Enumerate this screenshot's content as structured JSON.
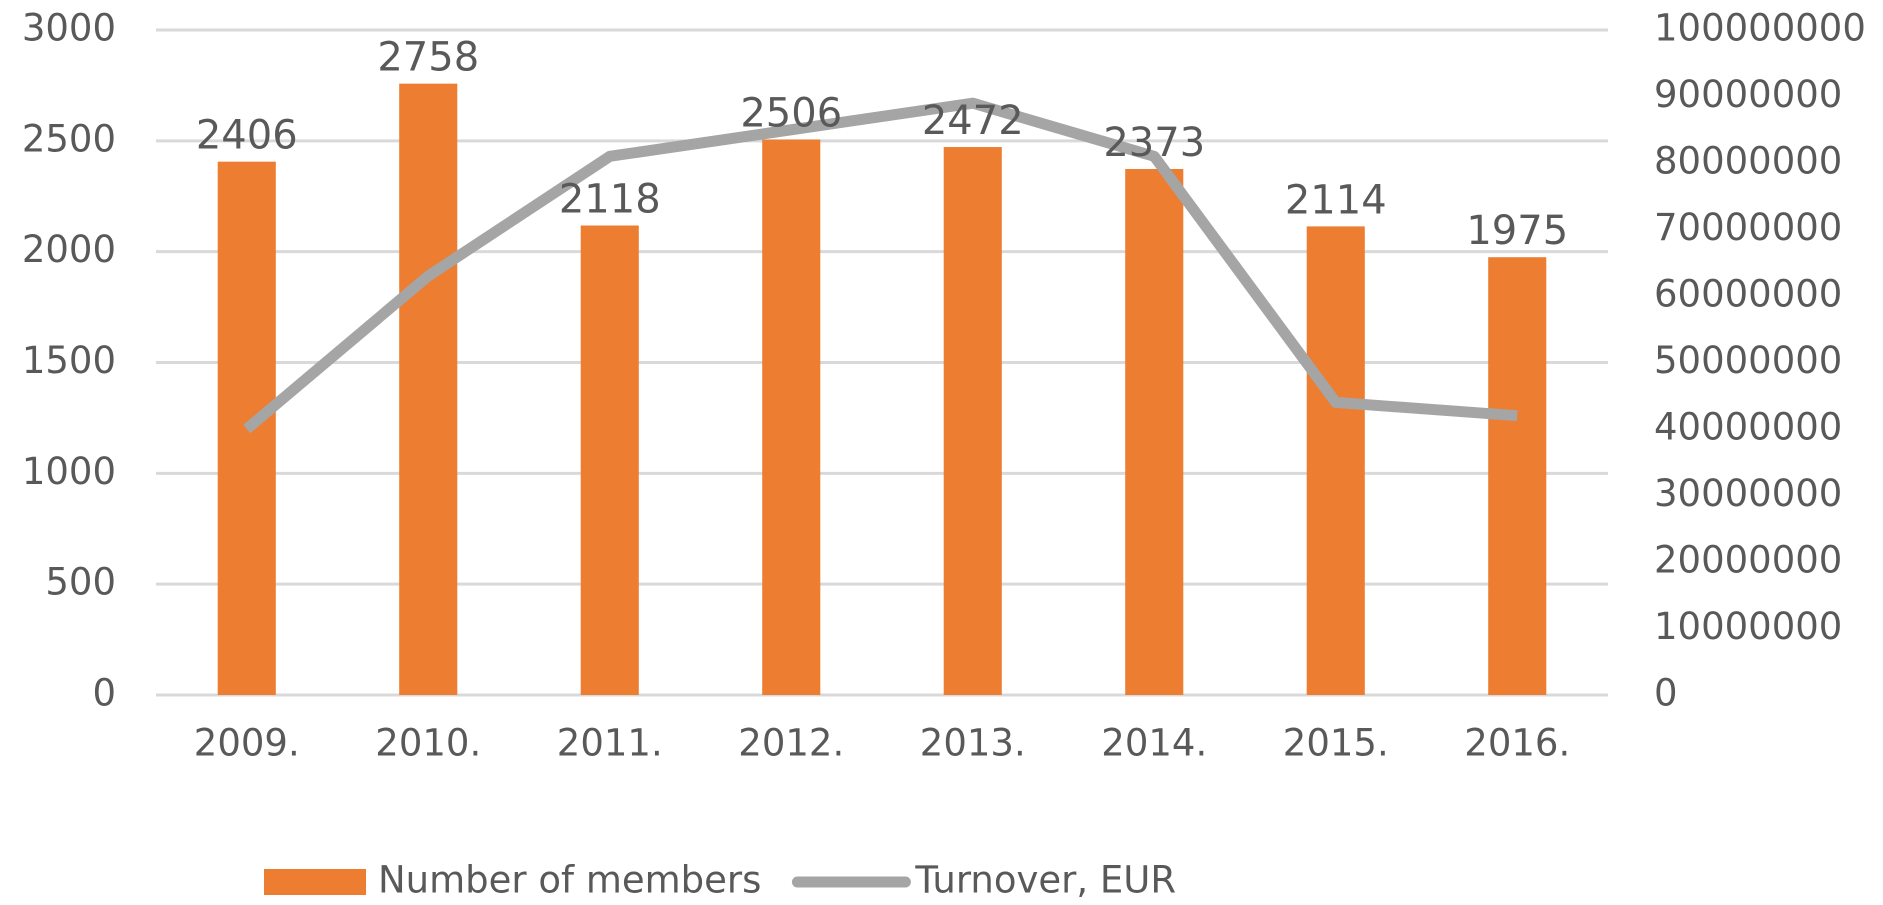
{
  "chart_data": {
    "type": "bar_line",
    "categories": [
      "2009.",
      "2010.",
      "2011.",
      "2012.",
      "2013.",
      "2014.",
      "2015.",
      "2016."
    ],
    "series": [
      {
        "name": "Number of members",
        "color": "#ed7d31",
        "type": "bar",
        "values": [
          2406,
          2758,
          2118,
          2506,
          2472,
          2373,
          2114,
          1975
        ]
      },
      {
        "name": "Turnover, EUR",
        "color": "#a5a5a5",
        "type": "line",
        "axis": "y2",
        "values": [
          40000000,
          63000000,
          81000000,
          85000000,
          89000000,
          81000000,
          44000000,
          42000000
        ]
      }
    ],
    "ylim": [
      0,
      3000
    ],
    "yticks": [
      0,
      500,
      1000,
      1500,
      2000,
      2500,
      3000
    ],
    "y2lim": [
      0,
      100000000
    ],
    "y2ticks": [
      0,
      10000000,
      20000000,
      30000000,
      40000000,
      50000000,
      60000000,
      70000000,
      80000000,
      90000000,
      100000000
    ],
    "grid": true,
    "legend": "bottom"
  }
}
